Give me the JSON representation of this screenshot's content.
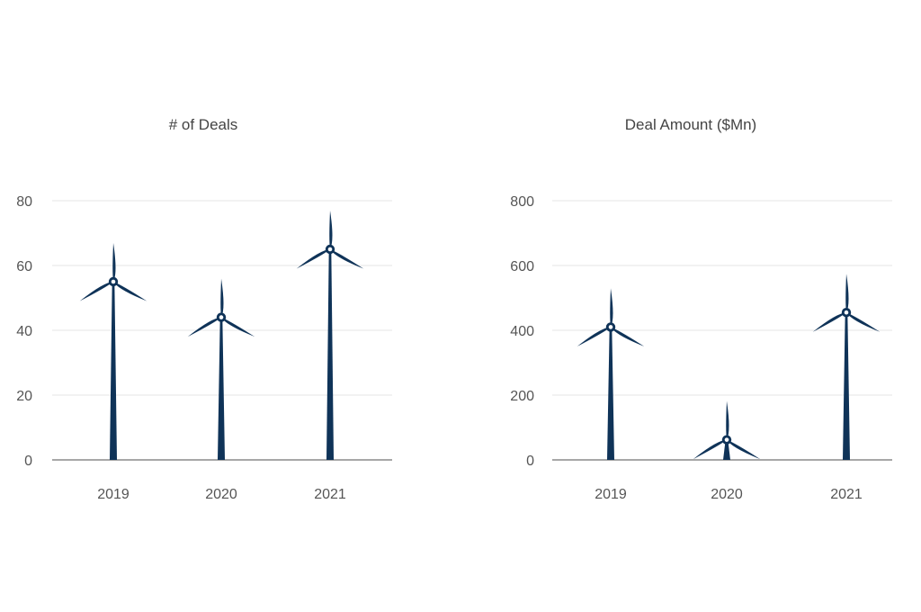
{
  "chart_data": [
    {
      "type": "bar",
      "title": "# of Deals",
      "categories": [
        "2019",
        "2020",
        "2021"
      ],
      "values": [
        55,
        44,
        65
      ],
      "ylim": [
        0,
        80
      ],
      "yticks": [
        0,
        20,
        40,
        60,
        80
      ],
      "xlabel": "",
      "ylabel": "",
      "grid": true,
      "legend": "none",
      "mark": "wind-turbine-icon",
      "color": "#0f3358"
    },
    {
      "type": "bar",
      "title": "Deal Amount ($Mn)",
      "categories": [
        "2019",
        "2020",
        "2021"
      ],
      "values": [
        410,
        62,
        455
      ],
      "ylim": [
        0,
        800
      ],
      "yticks": [
        0,
        200,
        400,
        600,
        800
      ],
      "xlabel": "",
      "ylabel": "",
      "grid": true,
      "legend": "none",
      "mark": "wind-turbine-icon",
      "color": "#0f3358"
    }
  ]
}
